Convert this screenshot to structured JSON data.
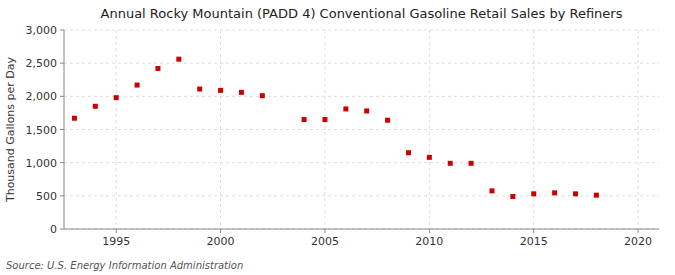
{
  "chart_data": {
    "type": "scatter",
    "title": "Annual Rocky Mountain (PADD 4) Conventional Gasoline Retail Sales by Refiners",
    "y_label": "Thousand Gallons per Day",
    "source": "Source: U.S. Energy Information Administration",
    "x": [
      1993,
      1994,
      1995,
      1996,
      1997,
      1998,
      1999,
      2000,
      2001,
      2002,
      2004,
      2005,
      2006,
      2007,
      2008,
      2009,
      2010,
      2011,
      2012,
      2013,
      2014,
      2015,
      2016,
      2017,
      2018
    ],
    "values": [
      1670,
      1850,
      1980,
      2170,
      2420,
      2560,
      2110,
      2090,
      2060,
      2010,
      1650,
      1650,
      1810,
      1780,
      1640,
      1150,
      1080,
      990,
      990,
      575,
      490,
      530,
      545,
      530,
      510
    ],
    "color": "#cc0000",
    "marker": "square",
    "xlim": [
      1992.5,
      2021
    ],
    "ylim": [
      0,
      3000
    ],
    "xticks": [
      1995,
      2000,
      2005,
      2010,
      2015,
      2020
    ],
    "yticks": [
      0,
      500,
      {
        "value": 1000,
        "label": "1,000"
      },
      {
        "value": 1500,
        "label": "1,500"
      },
      {
        "value": 2000,
        "label": "2,000"
      },
      {
        "value": 2500,
        "label": "2,500"
      },
      {
        "value": 3000,
        "label": "3,000"
      }
    ],
    "grid": true
  }
}
